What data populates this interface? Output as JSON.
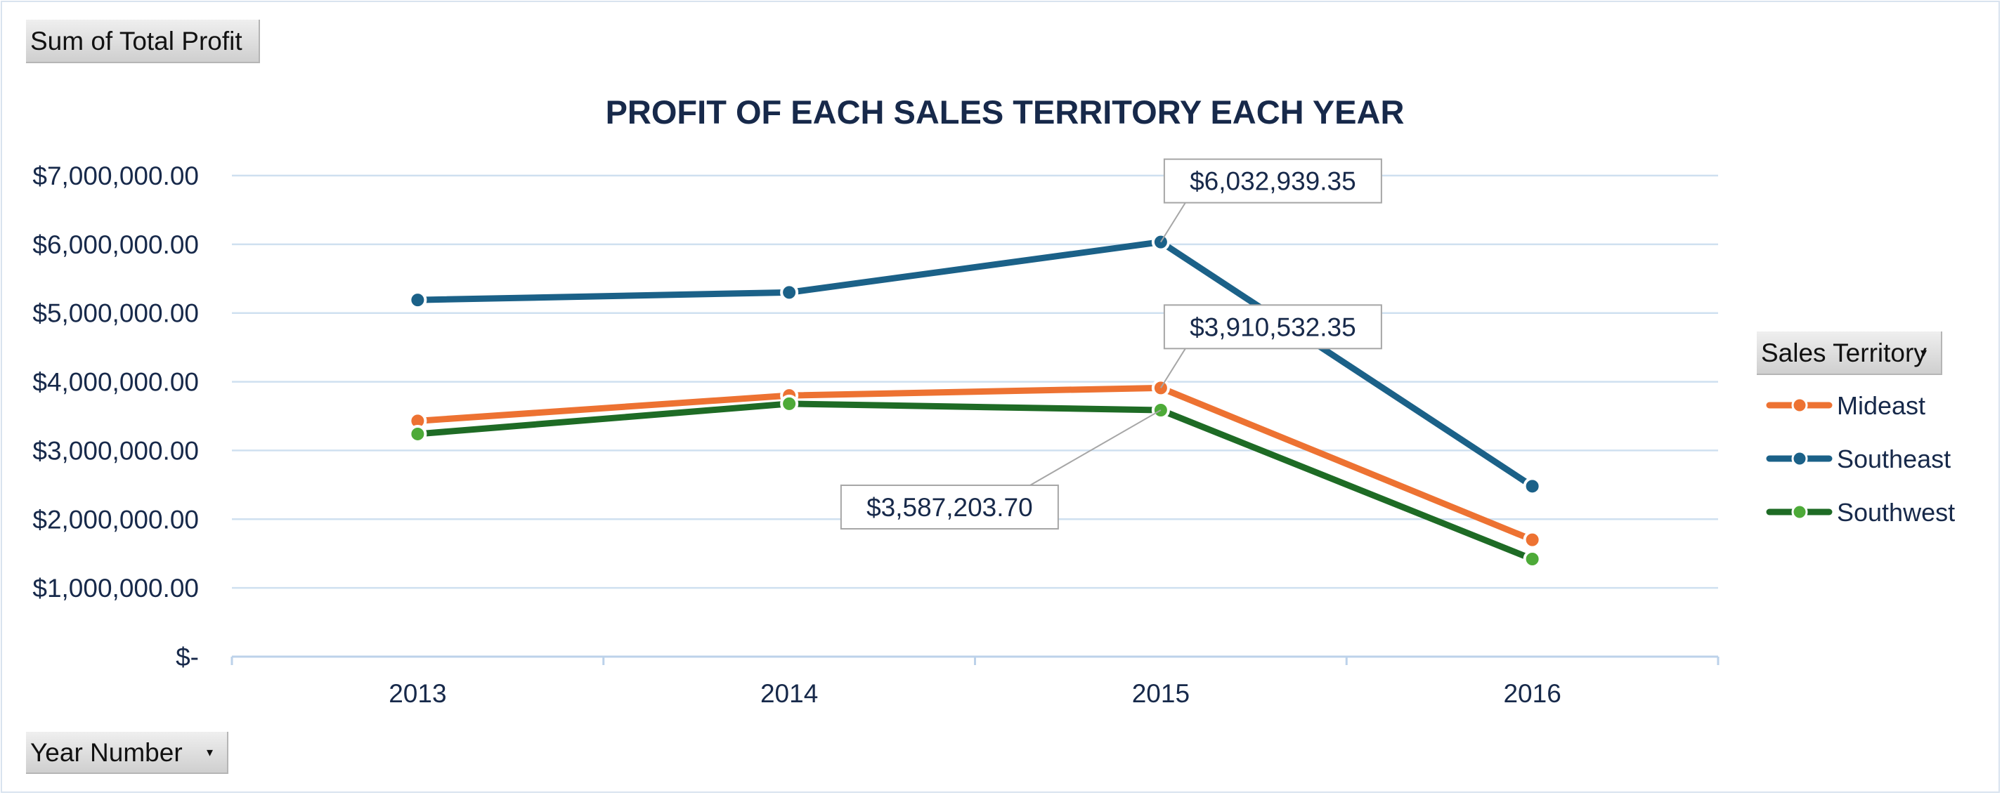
{
  "chart_buttons": {
    "value_field": "Sum of Total Profit",
    "axis_field": "Year Number",
    "legend_field": "Sales Territory"
  },
  "chart_data": {
    "type": "line",
    "title": "PROFIT OF EACH SALES TERRITORY EACH YEAR",
    "categories": [
      "2013",
      "2014",
      "2015",
      "2016"
    ],
    "ylim": [
      0,
      7000000
    ],
    "y_ticks": [
      {
        "value": 0,
        "label": "$-"
      },
      {
        "value": 1000000,
        "label": "$1,000,000.00"
      },
      {
        "value": 2000000,
        "label": "$2,000,000.00"
      },
      {
        "value": 3000000,
        "label": "$3,000,000.00"
      },
      {
        "value": 4000000,
        "label": "$4,000,000.00"
      },
      {
        "value": 5000000,
        "label": "$5,000,000.00"
      },
      {
        "value": 6000000,
        "label": "$6,000,000.00"
      },
      {
        "value": 7000000,
        "label": "$7,000,000.00"
      }
    ],
    "grid": true,
    "legend_position": "right",
    "series": [
      {
        "name": "Mideast",
        "color": "#ed7232",
        "marker_color": "#ed7232",
        "values": [
          3430000,
          3800000,
          3910532.35,
          1700000
        ]
      },
      {
        "name": "Southeast",
        "color": "#1b6188",
        "marker_color": "#1b6188",
        "values": [
          5190000,
          5300000,
          6032939.35,
          2480000
        ]
      },
      {
        "name": "Southwest",
        "color": "#1e6b25",
        "marker_color": "#4daa38",
        "values": [
          3240000,
          3680000,
          3587203.7,
          1420000
        ]
      }
    ],
    "data_labels": [
      {
        "series": "Southeast",
        "category": "2015",
        "value": 6032939.35,
        "text": "$6,032,939.35",
        "placement": "above-right"
      },
      {
        "series": "Mideast",
        "category": "2015",
        "value": 3910532.35,
        "text": "$3,910,532.35",
        "placement": "above-right"
      },
      {
        "series": "Southwest",
        "category": "2015",
        "value": 3587203.7,
        "text": "$3,587,203.70",
        "placement": "below-left"
      }
    ]
  },
  "colors": {
    "gridline": "#cfe0f0",
    "axis": "#bcd2ea",
    "text": "#17294a",
    "callout_border": "#a6a6a6"
  }
}
